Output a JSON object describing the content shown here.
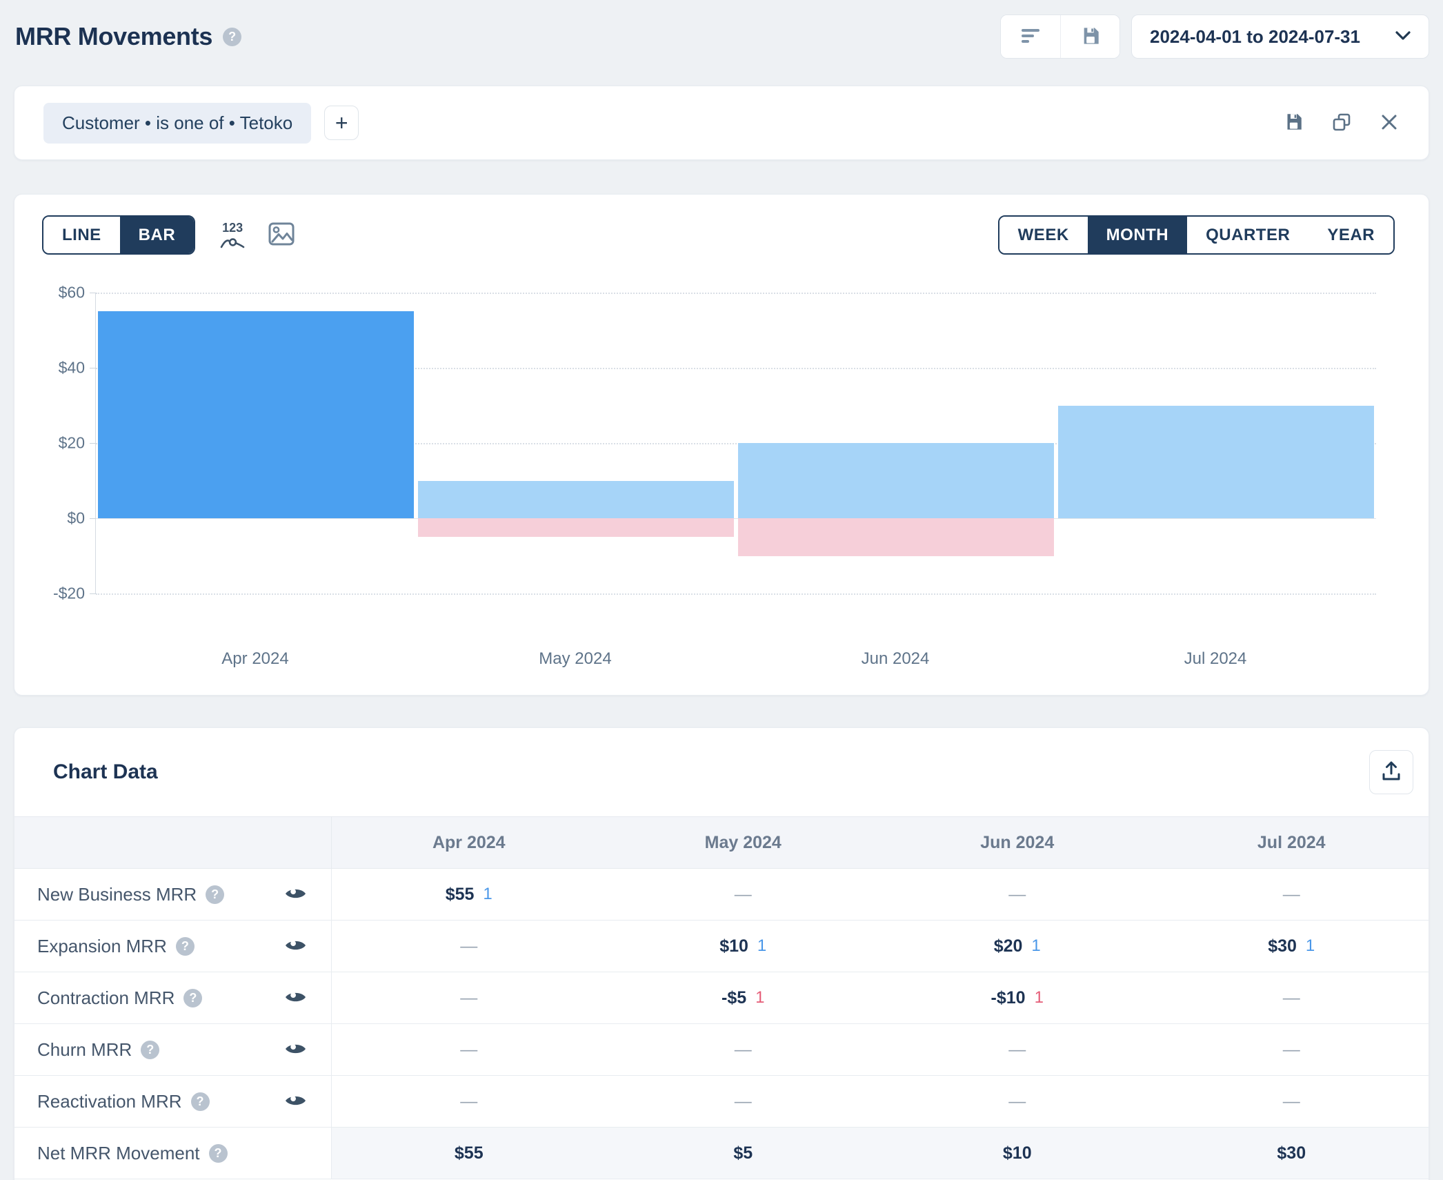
{
  "header": {
    "title": "MRR Movements",
    "date_range": "2024-04-01 to 2024-07-31"
  },
  "filter_bar": {
    "chip_label": "Customer • is one of • Tetoko",
    "add_button_label": "+"
  },
  "chart_toolbar": {
    "chart_type_options": [
      "LINE",
      "BAR"
    ],
    "chart_type_selected": "BAR",
    "values_badge_label": "123",
    "period_options": [
      "WEEK",
      "MONTH",
      "QUARTER",
      "YEAR"
    ],
    "period_selected": "MONTH"
  },
  "chart_data": {
    "type": "bar",
    "stacked": true,
    "title": "MRR Movements",
    "categories": [
      "Apr 2024",
      "May 2024",
      "Jun 2024",
      "Jul 2024"
    ],
    "series": [
      {
        "name": "New Business MRR",
        "color": "#4ba0f0",
        "values": [
          55,
          0,
          0,
          0
        ]
      },
      {
        "name": "Expansion MRR",
        "color": "#a6d4f8",
        "values": [
          0,
          10,
          20,
          30
        ]
      },
      {
        "name": "Contraction MRR",
        "color": "#f6cfd9",
        "values": [
          0,
          -5,
          -10,
          0
        ]
      }
    ],
    "y_ticks": [
      {
        "value": 60,
        "label": "$60"
      },
      {
        "value": 40,
        "label": "$40"
      },
      {
        "value": 20,
        "label": "$20"
      },
      {
        "value": 0,
        "label": "$0"
      },
      {
        "value": -20,
        "label": "-$20"
      }
    ],
    "ylim": [
      -20,
      60
    ],
    "xlabel": "",
    "ylabel": "",
    "grid": "horizontal-dotted",
    "legend_position": "none"
  },
  "data_table": {
    "title": "Chart Data",
    "columns": [
      "Apr 2024",
      "May 2024",
      "Jun 2024",
      "Jul 2024"
    ],
    "rows": [
      {
        "label": "New Business MRR",
        "has_help": true,
        "has_eye": true,
        "highlight": false,
        "cells": [
          {
            "value": "$55",
            "count": "1",
            "count_color": "blue"
          },
          {
            "value": "—"
          },
          {
            "value": "—"
          },
          {
            "value": "—"
          }
        ]
      },
      {
        "label": "Expansion MRR",
        "has_help": true,
        "has_eye": true,
        "highlight": false,
        "cells": [
          {
            "value": "—"
          },
          {
            "value": "$10",
            "count": "1",
            "count_color": "blue"
          },
          {
            "value": "$20",
            "count": "1",
            "count_color": "blue"
          },
          {
            "value": "$30",
            "count": "1",
            "count_color": "blue"
          }
        ]
      },
      {
        "label": "Contraction MRR",
        "has_help": true,
        "has_eye": true,
        "highlight": false,
        "cells": [
          {
            "value": "—"
          },
          {
            "value": "-$5",
            "count": "1",
            "count_color": "red"
          },
          {
            "value": "-$10",
            "count": "1",
            "count_color": "red"
          },
          {
            "value": "—"
          }
        ]
      },
      {
        "label": "Churn MRR",
        "has_help": true,
        "has_eye": true,
        "highlight": false,
        "cells": [
          {
            "value": "—"
          },
          {
            "value": "—"
          },
          {
            "value": "—"
          },
          {
            "value": "—"
          }
        ]
      },
      {
        "label": "Reactivation MRR",
        "has_help": true,
        "has_eye": true,
        "highlight": false,
        "cells": [
          {
            "value": "—"
          },
          {
            "value": "—"
          },
          {
            "value": "—"
          },
          {
            "value": "—"
          }
        ]
      },
      {
        "label": "Net MRR Movement",
        "has_help": true,
        "has_eye": false,
        "highlight": true,
        "cells": [
          {
            "value": "$55"
          },
          {
            "value": "$5"
          },
          {
            "value": "$10"
          },
          {
            "value": "$30"
          }
        ]
      }
    ]
  },
  "icons": {
    "help_glyph": "?",
    "names": [
      "filter-icon",
      "save-icon",
      "chevron-down-icon",
      "copy-icon",
      "close-icon",
      "values-123-icon",
      "image-icon",
      "eye-icon",
      "export-icon",
      "help-icon"
    ]
  },
  "colors": {
    "page_bg": "#eef1f4",
    "panel_bg": "#ffffff",
    "accent_navy": "#203c5c",
    "bar_new_business": "#4ba0f0",
    "bar_expansion": "#a6d4f8",
    "bar_contraction": "#f6cfd9",
    "count_positive": "#4a97e8",
    "count_negative": "#e55c77",
    "net_row_bg": "#f5f7fa"
  }
}
